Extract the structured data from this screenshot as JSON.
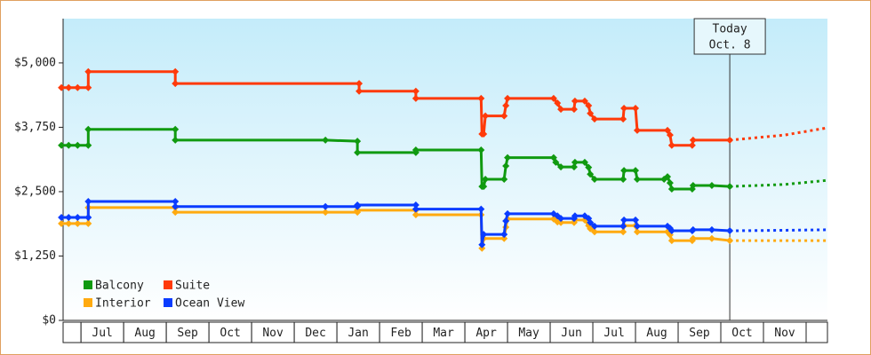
{
  "chart_data": {
    "type": "line",
    "xlim": [
      0.58,
      18.5
    ],
    "xticks": [
      {
        "value": 1,
        "label": "Jul"
      },
      {
        "value": 2,
        "label": "Aug"
      },
      {
        "value": 3,
        "label": "Sep"
      },
      {
        "value": 4,
        "label": "Oct"
      },
      {
        "value": 5,
        "label": "Nov"
      },
      {
        "value": 6,
        "label": "Dec"
      },
      {
        "value": 7,
        "label": "Jan"
      },
      {
        "value": 8,
        "label": "Feb"
      },
      {
        "value": 9,
        "label": "Mar"
      },
      {
        "value": 10,
        "label": "Apr"
      },
      {
        "value": 11,
        "label": "May"
      },
      {
        "value": 12,
        "label": "Jun"
      },
      {
        "value": 13,
        "label": "Jul"
      },
      {
        "value": 14,
        "label": "Aug"
      },
      {
        "value": 15,
        "label": "Sep"
      },
      {
        "value": 16,
        "label": "Oct"
      },
      {
        "value": 17,
        "label": "Nov"
      }
    ],
    "ylim": [
      0,
      5860
    ],
    "yticks": [
      {
        "value": 0,
        "label": "$0"
      },
      {
        "value": 1250,
        "label": "$1,250"
      },
      {
        "value": 2500,
        "label": "$2,500"
      },
      {
        "value": 3750,
        "label": "$3,750"
      },
      {
        "value": 5000,
        "label": "$5,000"
      }
    ],
    "annotation": {
      "x": 16.21,
      "text": [
        "Today",
        "Oct. 8"
      ]
    },
    "series": [
      {
        "name": "Balcony",
        "color": "#109a10",
        "x": [
          0.54,
          0.71,
          0.92,
          1.17,
          1.17,
          3.21,
          3.21,
          6.73,
          7.48,
          7.48,
          8.85,
          8.85,
          10.38,
          10.4,
          10.44,
          10.48,
          10.92,
          10.96,
          11.0,
          12.08,
          12.13,
          12.25,
          12.56,
          12.58,
          12.81,
          12.9,
          12.94,
          13.04,
          13.71,
          13.73,
          14.0,
          14.04,
          14.67,
          14.75,
          14.81,
          14.85,
          15.33,
          15.35,
          15.79,
          16.21
        ],
        "values": [
          3400,
          3400,
          3400,
          3400,
          3710,
          3710,
          3500,
          3500,
          3480,
          3260,
          3260,
          3310,
          3310,
          2600,
          2600,
          2740,
          2740,
          3000,
          3160,
          3160,
          3070,
          2980,
          2980,
          3070,
          3070,
          2970,
          2840,
          2740,
          2740,
          2910,
          2910,
          2740,
          2740,
          2790,
          2670,
          2550,
          2550,
          2620,
          2620,
          2600
        ],
        "forecast": {
          "x": [
            16.21,
            17.5,
            18.5
          ],
          "values": [
            2600,
            2640,
            2720
          ]
        }
      },
      {
        "name": "Suite",
        "color": "#ff3a0a",
        "x": [
          0.54,
          0.71,
          0.92,
          1.17,
          1.17,
          3.21,
          3.21,
          7.52,
          7.52,
          8.85,
          8.85,
          10.38,
          10.4,
          10.44,
          10.48,
          10.92,
          10.96,
          11.0,
          12.08,
          12.17,
          12.25,
          12.56,
          12.58,
          12.81,
          12.9,
          12.94,
          13.04,
          13.71,
          13.73,
          14.0,
          14.04,
          14.75,
          14.81,
          14.85,
          15.33,
          15.35,
          16.21
        ],
        "values": [
          4520,
          4520,
          4520,
          4520,
          4830,
          4830,
          4600,
          4600,
          4450,
          4450,
          4310,
          4310,
          3620,
          3620,
          3970,
          3970,
          4170,
          4310,
          4310,
          4220,
          4100,
          4100,
          4260,
          4260,
          4170,
          4020,
          3910,
          3910,
          4120,
          4120,
          3690,
          3690,
          3600,
          3400,
          3400,
          3500,
          3500
        ],
        "forecast": {
          "x": [
            16.21,
            17.5,
            18.5
          ],
          "values": [
            3500,
            3600,
            3740
          ]
        }
      },
      {
        "name": "Interior",
        "color": "#ffaa10",
        "x": [
          0.54,
          0.71,
          0.92,
          1.17,
          1.17,
          3.21,
          3.21,
          6.73,
          7.48,
          7.48,
          8.85,
          8.85,
          10.38,
          10.4,
          10.44,
          10.92,
          10.96,
          11.0,
          12.08,
          12.17,
          12.25,
          12.56,
          12.58,
          12.81,
          12.9,
          12.94,
          13.04,
          13.71,
          13.73,
          14.0,
          14.04,
          14.75,
          14.81,
          14.85,
          15.33,
          15.35,
          15.79,
          16.21
        ],
        "values": [
          1880,
          1880,
          1880,
          1880,
          2190,
          2190,
          2100,
          2100,
          2100,
          2140,
          2140,
          2050,
          2050,
          1400,
          1590,
          1590,
          1810,
          1970,
          1970,
          1910,
          1900,
          1900,
          1950,
          1950,
          1840,
          1780,
          1720,
          1720,
          1840,
          1840,
          1720,
          1720,
          1660,
          1550,
          1550,
          1590,
          1590,
          1550
        ],
        "forecast": {
          "x": [
            16.21,
            17.5,
            18.5
          ],
          "values": [
            1550,
            1550,
            1550
          ]
        }
      },
      {
        "name": "Ocean View",
        "color": "#0a3cff",
        "x": [
          0.54,
          0.71,
          0.92,
          1.17,
          1.17,
          3.21,
          3.21,
          6.73,
          7.48,
          7.48,
          8.85,
          8.85,
          10.38,
          10.4,
          10.44,
          10.92,
          10.96,
          11.0,
          12.08,
          12.17,
          12.25,
          12.56,
          12.58,
          12.81,
          12.9,
          12.94,
          13.04,
          13.71,
          13.73,
          14.0,
          14.04,
          14.75,
          14.81,
          14.85,
          15.33,
          15.35,
          15.79,
          16.21
        ],
        "values": [
          2000,
          2000,
          2000,
          2000,
          2310,
          2310,
          2210,
          2210,
          2210,
          2240,
          2240,
          2160,
          2160,
          1470,
          1670,
          1670,
          1930,
          2070,
          2070,
          2030,
          1980,
          1980,
          2030,
          2030,
          1980,
          1900,
          1830,
          1830,
          1950,
          1950,
          1830,
          1830,
          1790,
          1740,
          1740,
          1760,
          1760,
          1740
        ],
        "forecast": {
          "x": [
            16.21,
            17.5,
            18.5
          ],
          "values": [
            1740,
            1750,
            1760
          ]
        }
      }
    ]
  }
}
